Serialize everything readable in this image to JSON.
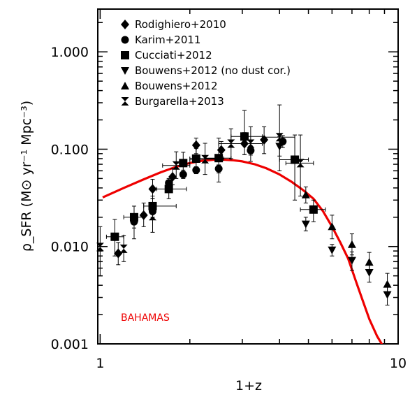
{
  "chart_data": {
    "type": "scatter",
    "title": "",
    "xlabel": "1+z",
    "ylabel": "ρ_SFR (M⊙ yr⁻¹ Mpc⁻³)",
    "xscale": "log",
    "yscale": "log",
    "xlim": [
      0.982,
      10
    ],
    "ylim": [
      0.001,
      2.75
    ],
    "x_ticks": [
      {
        "value": 1,
        "label": "1"
      },
      {
        "value": 10,
        "label": "10"
      }
    ],
    "y_ticks": [
      {
        "value": 0.001,
        "label": "0.001"
      },
      {
        "value": 0.01,
        "label": "0.010"
      },
      {
        "value": 0.1,
        "label": "0.100"
      },
      {
        "value": 1,
        "label": "1.000"
      }
    ],
    "legend_position": "top-left",
    "series": [
      {
        "name": "Rodighiero+2010",
        "marker": "diamond",
        "color": "#000000",
        "points": [
          {
            "x": 1.15,
            "y": 0.0085,
            "ylo": 0.0065,
            "yhi": 0.011
          },
          {
            "x": 1.4,
            "y": 0.021,
            "ylo": 0.016,
            "yhi": 0.028
          },
          {
            "x": 1.5,
            "y": 0.039,
            "ylo": 0.031,
            "yhi": 0.049
          },
          {
            "x": 1.75,
            "y": 0.052,
            "ylo": 0.043,
            "yhi": 0.063
          },
          {
            "x": 2.1,
            "y": 0.11,
            "ylo": 0.09,
            "yhi": 0.13
          },
          {
            "x": 2.55,
            "y": 0.098,
            "ylo": 0.08,
            "yhi": 0.12
          },
          {
            "x": 3.05,
            "y": 0.114,
            "ylo": 0.088,
            "yhi": 0.148
          },
          {
            "x": 3.55,
            "y": 0.125,
            "ylo": 0.09,
            "yhi": 0.17
          }
        ]
      },
      {
        "name": "Karim+2011",
        "marker": "circle",
        "color": "#000000",
        "points": [
          {
            "x": 1.3,
            "y": 0.018,
            "ylo": 0.0155,
            "yhi": 0.021
          },
          {
            "x": 1.5,
            "y": 0.023,
            "ylo": 0.02,
            "yhi": 0.026
          },
          {
            "x": 1.7,
            "y": 0.045,
            "ylo": 0.04,
            "yhi": 0.05
          },
          {
            "x": 1.9,
            "y": 0.055,
            "ylo": 0.05,
            "yhi": 0.061
          },
          {
            "x": 2.1,
            "y": 0.061,
            "ylo": 0.056,
            "yhi": 0.066
          },
          {
            "x": 2.5,
            "y": 0.063,
            "ylo": 0.057,
            "yhi": 0.069
          },
          {
            "x": 3.2,
            "y": 0.097,
            "ylo": 0.087,
            "yhi": 0.108
          },
          {
            "x": 4.1,
            "y": 0.12,
            "ylo": 0.104,
            "yhi": 0.138
          }
        ]
      },
      {
        "name": "Cucciati+2012",
        "marker": "square",
        "color": "#000000",
        "points": [
          {
            "x": 1.12,
            "y": 0.0126,
            "ylo": 0.008,
            "yhi": 0.019,
            "xlo": 1.05,
            "xhi": 1.2
          },
          {
            "x": 1.3,
            "y": 0.02,
            "ylo": 0.012,
            "yhi": 0.026,
            "xlo": 1.2,
            "xhi": 1.4
          },
          {
            "x": 1.5,
            "y": 0.026,
            "ylo": 0.02,
            "yhi": 0.033,
            "xlo": 1.4,
            "xhi": 1.8
          },
          {
            "x": 1.7,
            "y": 0.039,
            "ylo": 0.031,
            "yhi": 0.048,
            "xlo": 1.55,
            "xhi": 1.95
          },
          {
            "x": 1.9,
            "y": 0.072,
            "ylo": 0.055,
            "yhi": 0.093,
            "xlo": 1.8,
            "xhi": 2.0
          },
          {
            "x": 2.1,
            "y": 0.08,
            "ylo": 0.062,
            "yhi": 0.102,
            "xlo": 2.0,
            "xhi": 2.6
          },
          {
            "x": 2.5,
            "y": 0.081,
            "ylo": 0.046,
            "yhi": 0.13,
            "xlo": 2.25,
            "xhi": 2.75
          },
          {
            "x": 3.05,
            "y": 0.135,
            "ylo": 0.088,
            "yhi": 0.25,
            "xlo": 2.75,
            "xhi": 3.5
          },
          {
            "x": 4.5,
            "y": 0.078,
            "ylo": 0.03,
            "yhi": 0.14,
            "xlo": 4.0,
            "xhi": 5.0
          },
          {
            "x": 5.2,
            "y": 0.024,
            "ylo": 0.018,
            "yhi": 0.03,
            "xlo": 4.7,
            "xhi": 5.7
          }
        ]
      },
      {
        "name": "Bouwens+2012 (no dust cor.)",
        "marker": "triangle-down",
        "color": "#000000",
        "points": [
          {
            "x": 4.0,
            "y": 0.107,
            "ylo": 0.085,
            "yhi": 0.135
          },
          {
            "x": 4.9,
            "y": 0.017,
            "ylo": 0.0145,
            "yhi": 0.02
          },
          {
            "x": 6.0,
            "y": 0.0092,
            "ylo": 0.008,
            "yhi": 0.0105
          },
          {
            "x": 7.0,
            "y": 0.0072,
            "ylo": 0.0057,
            "yhi": 0.0088
          },
          {
            "x": 8.0,
            "y": 0.0054,
            "ylo": 0.0043,
            "yhi": 0.0068
          },
          {
            "x": 9.2,
            "y": 0.0032,
            "ylo": 0.0025,
            "yhi": 0.004
          }
        ]
      },
      {
        "name": "Bouwens+2012",
        "marker": "triangle-up",
        "color": "#000000",
        "points": [
          {
            "x": 4.9,
            "y": 0.034,
            "ylo": 0.028,
            "yhi": 0.041
          },
          {
            "x": 6.0,
            "y": 0.016,
            "ylo": 0.012,
            "yhi": 0.021
          },
          {
            "x": 7.0,
            "y": 0.0105,
            "ylo": 0.0082,
            "yhi": 0.0135
          },
          {
            "x": 8.0,
            "y": 0.0069,
            "ylo": 0.0055,
            "yhi": 0.0087
          },
          {
            "x": 9.2,
            "y": 0.0041,
            "ylo": 0.0032,
            "yhi": 0.0053
          }
        ]
      },
      {
        "name": "Burgarella+2013",
        "marker": "hourglass",
        "color": "#000000",
        "points": [
          {
            "x": 1.0,
            "y": 0.0099,
            "ylo": 0.005,
            "yhi": 0.016
          },
          {
            "x": 1.2,
            "y": 0.0095,
            "ylo": 0.007,
            "yhi": 0.013
          },
          {
            "x": 1.5,
            "y": 0.0205,
            "ylo": 0.014,
            "yhi": 0.031
          },
          {
            "x": 1.8,
            "y": 0.068,
            "ylo": 0.05,
            "yhi": 0.094,
            "xlo": 1.62,
            "xhi": 2.0
          },
          {
            "x": 2.25,
            "y": 0.079,
            "ylo": 0.055,
            "yhi": 0.115,
            "xlo": 2.0,
            "xhi": 2.5
          },
          {
            "x": 2.75,
            "y": 0.114,
            "ylo": 0.08,
            "yhi": 0.162,
            "xlo": 2.5,
            "xhi": 3.0
          },
          {
            "x": 3.2,
            "y": 0.114,
            "ylo": 0.075,
            "yhi": 0.17,
            "xlo": 3.0,
            "xhi": 3.5
          },
          {
            "x": 4.0,
            "y": 0.133,
            "ylo": 0.06,
            "yhi": 0.285,
            "xlo": 3.5,
            "xhi": 4.5
          },
          {
            "x": 4.7,
            "y": 0.072,
            "ylo": 0.033,
            "yhi": 0.14,
            "xlo": 4.2,
            "xhi": 5.2
          }
        ]
      }
    ],
    "model": {
      "name": "BAHAMAS",
      "color": "#ee0000",
      "label": "BAHAMAS",
      "x": [
        1.02,
        1.2,
        1.4,
        1.6,
        1.8,
        2.0,
        2.2,
        2.4,
        2.6,
        2.8,
        3.0,
        3.3,
        3.6,
        4.0,
        4.4,
        4.8,
        5.2,
        5.6,
        6.0,
        6.4,
        6.8,
        7.2,
        7.6,
        8.0,
        8.5,
        8.9
      ],
      "y": [
        0.032,
        0.04,
        0.049,
        0.058,
        0.066,
        0.072,
        0.076,
        0.078,
        0.078,
        0.077,
        0.075,
        0.07,
        0.064,
        0.055,
        0.046,
        0.038,
        0.031,
        0.023,
        0.016,
        0.011,
        0.0075,
        0.0045,
        0.0028,
        0.0018,
        0.0012,
        0.00095
      ]
    }
  }
}
